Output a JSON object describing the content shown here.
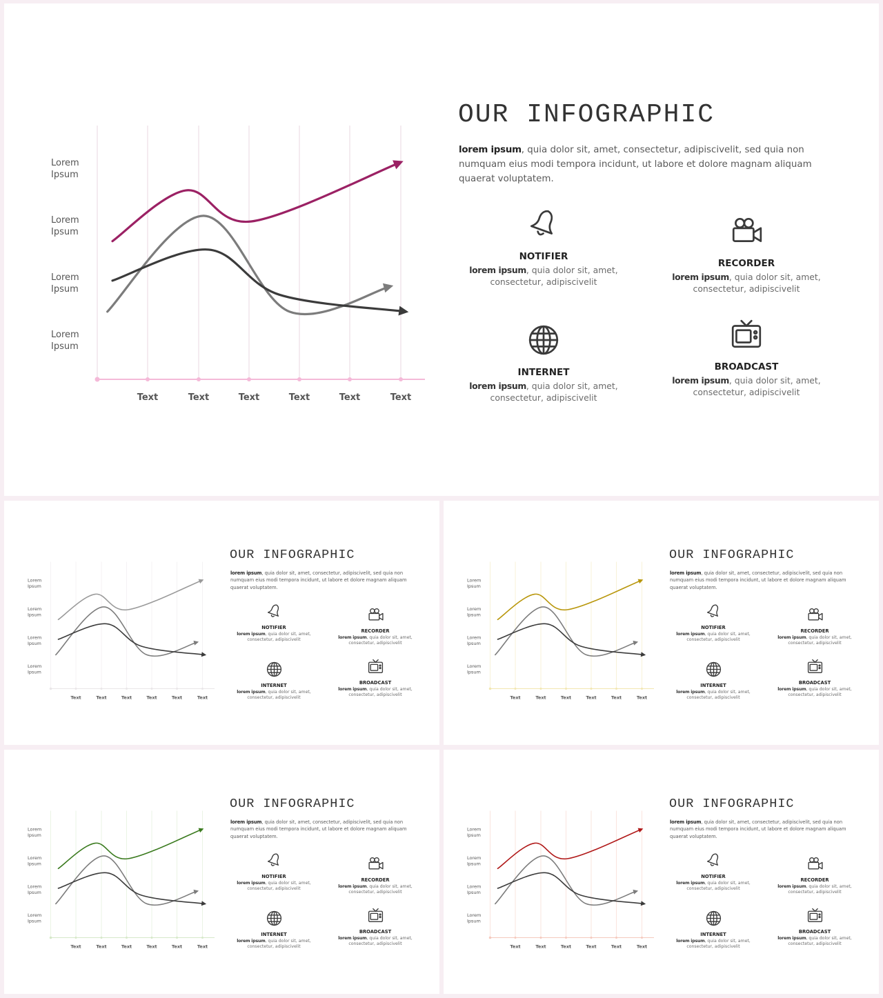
{
  "slides": [
    {
      "id": "main",
      "accent": "#9b2164",
      "first_line": "#9b2164"
    },
    {
      "id": "gray",
      "accent": "#e9e6e8",
      "first_line": "#9a9a9a"
    },
    {
      "id": "gold",
      "accent": "#f2e6b0",
      "first_line": "#b8960a"
    },
    {
      "id": "green",
      "accent": "#d6e8c9",
      "first_line": "#3a7a1e"
    },
    {
      "id": "red",
      "accent": "#f5c9bd",
      "first_line": "#b01818"
    }
  ],
  "colors": {
    "grid_main": "#ead7e2",
    "axis_main": "#f4b9d8",
    "second_line": "#7c7c7c",
    "third_line": "#3b3b3b"
  },
  "title": "OUR INFOGRAPHIC",
  "description": {
    "bold": "lorem ipsum",
    "rest": ", quia dolor sit, amet, consectetur, adipiscivelit, sed quia non numquam eius modi tempora incidunt, ut labore et dolore magnam aliquam quaerat voluptatem."
  },
  "features": [
    {
      "name": "NOTIFIER",
      "icon": "bell-icon",
      "bold": "lorem ipsum",
      "text": ", quia dolor sit, amet, consectetur, adipiscivelit"
    },
    {
      "name": "RECORDER",
      "icon": "video-camera-icon",
      "bold": "lorem ipsum",
      "text": ", quia dolor sit, amet, consectetur, adipiscivelit"
    },
    {
      "name": "INTERNET",
      "icon": "globe-icon",
      "bold": "lorem ipsum",
      "text": ", quia dolor sit, amet, consectetur, adipiscivelit"
    },
    {
      "name": "BROADCAST",
      "icon": "tv-icon",
      "bold": "lorem ipsum",
      "text": ", quia dolor sit, amet, consectetur, adipiscivelit"
    }
  ],
  "chart_data": {
    "type": "line",
    "title": "",
    "xlabel": "",
    "ylabel": "",
    "categories": [
      "Text",
      "Text",
      "Text",
      "Text",
      "Text",
      "Text"
    ],
    "y_labels": [
      [
        "Lorem",
        "Ipsum"
      ],
      [
        "Lorem",
        "Ipsum"
      ],
      [
        "Lorem",
        "Ipsum"
      ],
      [
        "Lorem",
        "Ipsum"
      ]
    ],
    "series": [
      {
        "x": [
          0.3,
          1.75,
          3.05,
          6.0
        ],
        "y": [
          2.45,
          3.35,
          2.8,
          3.85
        ]
      },
      {
        "x": [
          0.2,
          2.1,
          3.8,
          5.8
        ],
        "y": [
          1.2,
          2.9,
          1.2,
          1.65
        ]
      },
      {
        "x": [
          0.3,
          2.2,
          3.6,
          6.1
        ],
        "y": [
          1.75,
          2.3,
          1.5,
          1.2
        ]
      }
    ],
    "arrows": true,
    "grid": "vertical",
    "ylim": [
      0,
      4.5
    ],
    "xlim": [
      0,
      6.5
    ]
  }
}
